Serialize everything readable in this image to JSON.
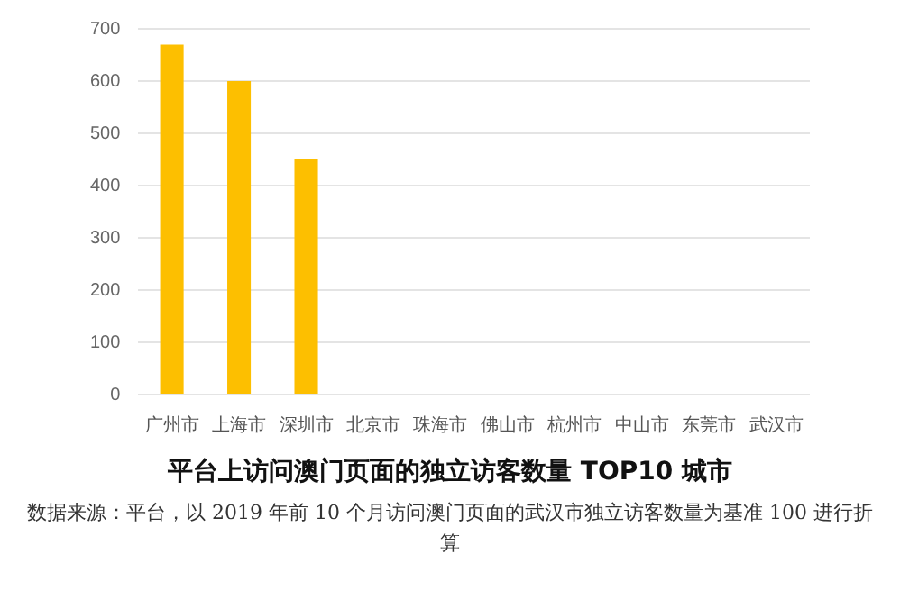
{
  "chart_data": {
    "type": "bar",
    "title": "平台上访问澳门页面的独立访客数量 TOP10 城市",
    "categories": [
      "广州市",
      "上海市",
      "深圳市",
      "北京市",
      "珠海市",
      "佛山市",
      "杭州市",
      "中山市",
      "东莞市",
      "武汉市"
    ],
    "values": [
      670,
      600,
      450,
      null,
      null,
      null,
      null,
      null,
      null,
      null
    ],
    "color": "#fdbf00",
    "ylim": [
      0,
      700
    ],
    "yticks": [
      0,
      100,
      200,
      300,
      400,
      500,
      600,
      700
    ],
    "grid": "y",
    "annotations": [
      "数据来源：平台，以 2019 年前 10 个月访问澳门页面的武汉市独立访客数量为基准 100 进行折算"
    ]
  }
}
